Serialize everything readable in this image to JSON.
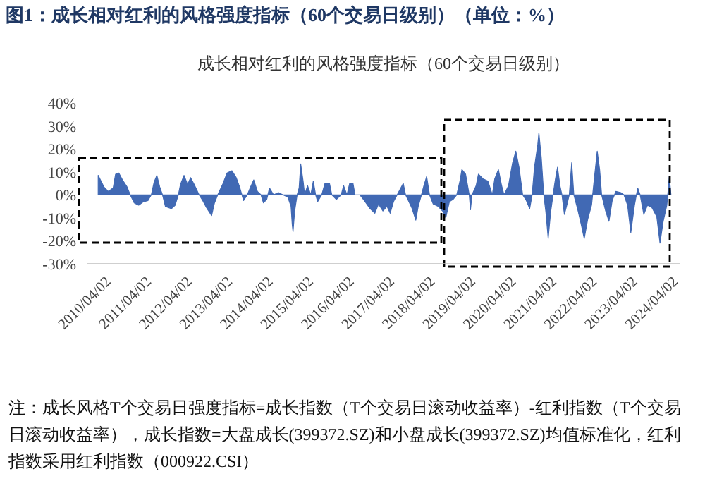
{
  "chart_data": {
    "type": "area",
    "title": "图1：成长相对红利的风格强度指标（60个交易日级别）（单位：%）",
    "subtitle": "成长相对红利的风格强度指标（60个交易日级别）",
    "annotations": [
      "注：成长风格T个交易日强度指标=成长指数（T个交易日滚动收益率）-红利指数（T个交易日滚动收益率），成长指数=大盘成长(399372.SZ)和小盘成长(399372.SZ)均值标准化，红利指数采用红利指数（000922.CSI）"
    ],
    "xlim": [
      "2009-11-01",
      "2024-06-15"
    ],
    "xticks": [
      {
        "value": "2010-04-02",
        "label": "2010/04/02"
      },
      {
        "value": "2011-04-02",
        "label": "2011/04/02"
      },
      {
        "value": "2012-04-02",
        "label": "2012/04/02"
      },
      {
        "value": "2013-04-02",
        "label": "2013/04/02"
      },
      {
        "value": "2014-04-02",
        "label": "2014/04/02"
      },
      {
        "value": "2015-04-02",
        "label": "2015/04/02"
      },
      {
        "value": "2016-04-02",
        "label": "2016/04/02"
      },
      {
        "value": "2017-04-02",
        "label": "2017/04/02"
      },
      {
        "value": "2018-04-02",
        "label": "2018/04/02"
      },
      {
        "value": "2019-04-02",
        "label": "2019/04/02"
      },
      {
        "value": "2020-04-02",
        "label": "2020/04/02"
      },
      {
        "value": "2021-04-02",
        "label": "2021/04/02"
      },
      {
        "value": "2022-04-02",
        "label": "2022/04/02"
      },
      {
        "value": "2023-04-02",
        "label": "2023/04/02"
      },
      {
        "value": "2024-04-02",
        "label": "2024/04/02"
      }
    ],
    "ylim": [
      -30,
      40
    ],
    "yticks": [
      {
        "value": -30,
        "label": "-30%"
      },
      {
        "value": -20,
        "label": "-20%"
      },
      {
        "value": -10,
        "label": "-10%"
      },
      {
        "value": 0,
        "label": "0%"
      },
      {
        "value": 10,
        "label": "10%"
      },
      {
        "value": 20,
        "label": "20%"
      },
      {
        "value": 30,
        "label": "30%"
      },
      {
        "value": 40,
        "label": "40%"
      }
    ],
    "series": [
      {
        "color": "#4169b4",
        "x": [
          "2010-02-06",
          "2010-03-29",
          "2010-05-08",
          "2010-06-21",
          "2010-07-13",
          "2010-08-11",
          "2010-09-13",
          "2010-10-24",
          "2010-11-22",
          "2010-12-28",
          "2011-02-06",
          "2011-03-21",
          "2011-05-01",
          "2011-05-31",
          "2011-06-25",
          "2011-07-20",
          "2011-08-15",
          "2011-09-09",
          "2011-10-05",
          "2011-11-29",
          "2012-01-01",
          "2012-01-30",
          "2012-02-18",
          "2012-03-21",
          "2012-04-23",
          "2012-05-19",
          "2012-06-21",
          "2012-08-04",
          "2012-09-06",
          "2012-10-09",
          "2012-11-25",
          "2012-12-21",
          "2013-01-19",
          "2013-03-04",
          "2013-04-13",
          "2013-05-27",
          "2013-07-05",
          "2013-08-04",
          "2013-09-09",
          "2013-10-13",
          "2013-11-11",
          "2013-12-10",
          "2014-01-12",
          "2014-02-13",
          "2014-03-07",
          "2014-04-06",
          "2014-05-01",
          "2014-06-07",
          "2014-07-20",
          "2014-08-30",
          "2014-10-13",
          "2014-11-11",
          "2014-11-22",
          "2014-11-29",
          "2014-12-14",
          "2015-01-05",
          "2015-01-23",
          "2015-02-06",
          "2015-02-28",
          "2015-03-14",
          "2015-04-09",
          "2015-05-08",
          "2015-05-31",
          "2015-06-21",
          "2015-07-09",
          "2015-08-15",
          "2015-09-13",
          "2015-10-24",
          "2015-11-14",
          "2015-12-25",
          "2016-02-06",
          "2016-02-28",
          "2016-03-29",
          "2016-04-23",
          "2016-05-23",
          "2016-06-10",
          "2016-07-24",
          "2016-09-02",
          "2016-10-24",
          "2016-12-06",
          "2017-01-08",
          "2017-02-17",
          "2017-03-25",
          "2017-04-23",
          "2017-05-23",
          "2017-06-25",
          "2017-07-28",
          "2017-08-19",
          "2017-09-09",
          "2017-10-09",
          "2017-11-07",
          "2017-12-10",
          "2018-01-01",
          "2018-01-30",
          "2018-02-21",
          "2018-03-18",
          "2018-04-13",
          "2018-05-16",
          "2018-06-28",
          "2018-08-08",
          "2018-09-06",
          "2018-10-09",
          "2018-11-11",
          "2018-12-14",
          "2019-01-12",
          "2019-01-30",
          "2019-03-04",
          "2019-04-06",
          "2019-04-17",
          "2019-05-01",
          "2019-06-07",
          "2019-06-28",
          "2019-08-08",
          "2019-09-21",
          "2019-10-31",
          "2019-11-22",
          "2019-12-25",
          "2020-01-23",
          "2020-02-14",
          "2020-03-25",
          "2020-05-01",
          "2020-05-30",
          "2020-06-28",
          "2020-07-31",
          "2020-09-02",
          "2020-10-02",
          "2020-10-24",
          "2020-11-14",
          "2020-12-14",
          "2020-12-24",
          "2021-01-15",
          "2021-02-06",
          "2021-02-25",
          "2021-03-18",
          "2021-04-09",
          "2021-05-01",
          "2021-05-19",
          "2021-06-10",
          "2021-07-02",
          "2021-07-20",
          "2021-08-11",
          "2021-09-02",
          "2021-09-24",
          "2021-10-16",
          "2021-11-04",
          "2021-12-10",
          "2022-01-08",
          "2022-02-06",
          "2022-03-10",
          "2022-04-13",
          "2022-05-12",
          "2022-06-03",
          "2022-06-25",
          "2022-07-13",
          "2022-08-15",
          "2022-09-17",
          "2022-10-16",
          "2022-11-18",
          "2023-01-01",
          "2023-01-30",
          "2023-03-04",
          "2023-04-02",
          "2023-05-05",
          "2023-06-03",
          "2023-06-25",
          "2023-07-28",
          "2023-08-30",
          "2023-10-09",
          "2023-11-22",
          "2023-12-21",
          "2024-01-19",
          "2024-02-21",
          "2024-03-14",
          "2024-03-29"
        ],
        "values": [
          8.5,
          3.5,
          1.5,
          3,
          9,
          9.5,
          6.5,
          3.5,
          0,
          -3.5,
          -4.5,
          -3,
          -2.5,
          0,
          5.5,
          8.5,
          3.5,
          0,
          -5,
          -6,
          -4.5,
          0,
          4.5,
          8.5,
          4.5,
          7.5,
          4.5,
          0,
          -2.5,
          -5.5,
          -9,
          -3.5,
          0,
          4.5,
          9.5,
          10.5,
          7.5,
          3.5,
          -2.5,
          0,
          3.5,
          6.5,
          1.5,
          0,
          -3.5,
          -2,
          3,
          0,
          1,
          0,
          -1,
          -5,
          -13,
          -16,
          -7,
          0,
          3,
          13.5,
          6,
          0,
          4,
          0,
          6,
          0,
          -3,
          0,
          5,
          5,
          0,
          -2,
          0,
          4,
          0,
          5,
          5,
          0,
          0,
          -2.5,
          -6,
          -8,
          -4,
          -7,
          -5,
          -8,
          -3,
          0,
          3,
          5,
          0,
          -3,
          -6,
          -11,
          -5,
          0,
          4,
          8,
          0,
          -4,
          -5,
          -7,
          -10,
          -3,
          -2,
          0,
          6,
          11,
          9,
          0,
          -6.5,
          0,
          4,
          9,
          7,
          6,
          0,
          7,
          11,
          4,
          0,
          4,
          14,
          19,
          12,
          0,
          -2.5,
          -6,
          0,
          12,
          22,
          27,
          16,
          0,
          -7.5,
          -19,
          -7.5,
          0,
          6,
          12,
          4,
          0,
          -8.5,
          -4.5,
          0,
          14,
          0,
          -6.5,
          -12.5,
          -19,
          -10.5,
          -4.5,
          9,
          19,
          11,
          0,
          -6.5,
          -11.5,
          -2.5,
          1.5,
          1,
          0,
          -4.5,
          -16.5,
          -4.5,
          3,
          0,
          -8.5,
          -4.5,
          -5.5,
          -9.5,
          -21,
          -11.5,
          -4.5,
          8,
          0
        ]
      }
    ]
  }
}
